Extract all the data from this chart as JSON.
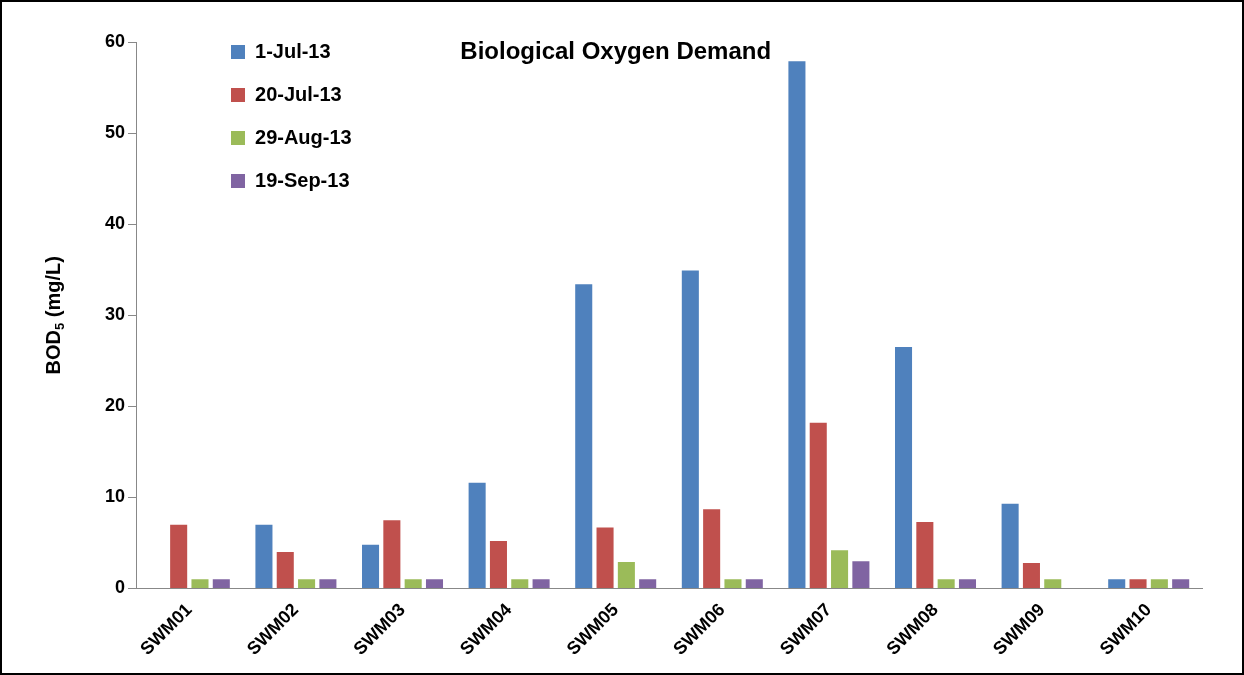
{
  "chart_data": {
    "type": "bar",
    "title": "Biological Oxygen Demand",
    "ylabel": "BOD$_{5}$ (mg/L)",
    "categories": [
      "SWM01",
      "SWM02",
      "SWM03",
      "SWM04",
      "SWM05",
      "SWM06",
      "SWM07",
      "SWM08",
      "SWM09",
      "SWM10"
    ],
    "series": [
      {
        "name": "1-Jul-13",
        "color": "#4f81bd",
        "values": [
          null,
          7,
          4.8,
          11.6,
          33.4,
          34.9,
          57.9,
          26.5,
          9.3,
          1
        ]
      },
      {
        "name": "20-Jul-13",
        "color": "#c0504d",
        "values": [
          7,
          4,
          7.5,
          5.2,
          6.7,
          8.7,
          18.2,
          7.3,
          2.8,
          1
        ]
      },
      {
        "name": "29-Aug-13",
        "color": "#9bbb59",
        "values": [
          1,
          1,
          1,
          1,
          2.9,
          1,
          4.2,
          1,
          1,
          1
        ]
      },
      {
        "name": "19-Sep-13",
        "color": "#8064a2",
        "values": [
          1,
          1,
          1,
          1,
          1,
          1,
          3,
          1,
          null,
          1
        ]
      }
    ],
    "ylim": [
      0,
      60
    ],
    "yticks": [
      0,
      10,
      20,
      30,
      40,
      50,
      60
    ],
    "grid": false,
    "legend": "top left"
  }
}
